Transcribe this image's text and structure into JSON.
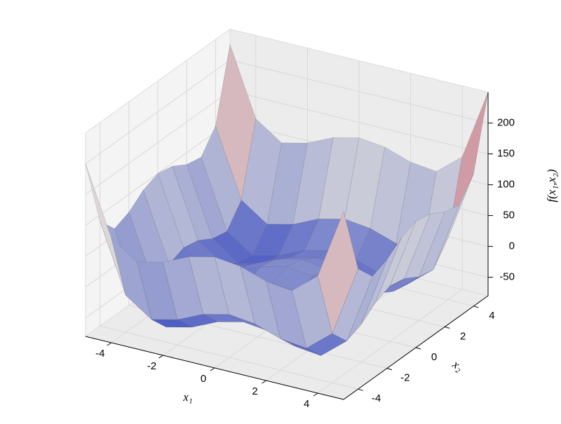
{
  "chart_data": {
    "type": "surface",
    "x_label": "x₁",
    "y_label": "x₂",
    "z_label": "f(x₁,x₂)",
    "x": [
      -5,
      -4,
      -3,
      -2,
      -1,
      0,
      1,
      2,
      3,
      4,
      5
    ],
    "y": [
      -5,
      -4,
      -3,
      -2,
      -1,
      0,
      1,
      2,
      3,
      4,
      5
    ],
    "z": [
      [
        200,
        90,
        61,
        71,
        90,
        100,
        95,
        81,
        76,
        110,
        225
      ],
      [
        90,
        -20,
        -49,
        -39,
        -20,
        -10,
        -15,
        -29,
        -34,
        0,
        115
      ],
      [
        61,
        -49,
        -78,
        -68,
        -49,
        -39,
        -44,
        -58,
        -63,
        -29,
        86
      ],
      [
        71,
        -39,
        -68,
        -58,
        -39,
        -29,
        -34,
        -48,
        -53,
        -19,
        96
      ],
      [
        90,
        -20,
        -49,
        -39,
        -20,
        -10,
        -15,
        -29,
        -34,
        0,
        115
      ],
      [
        100,
        -10,
        -39,
        -29,
        -10,
        0,
        -5,
        -19,
        -24,
        10,
        125
      ],
      [
        95,
        -15,
        -44,
        -34,
        -15,
        -5,
        -10,
        -24,
        -29,
        5,
        120
      ],
      [
        81,
        -29,
        -58,
        -48,
        -29,
        -19,
        -24,
        -38,
        -43,
        -9,
        106
      ],
      [
        76,
        -34,
        -63,
        -53,
        -34,
        -24,
        -29,
        -43,
        -48,
        -14,
        101
      ],
      [
        110,
        0,
        -29,
        -19,
        0,
        10,
        5,
        -9,
        -14,
        20,
        135
      ],
      [
        225,
        115,
        86,
        96,
        115,
        125,
        120,
        106,
        101,
        135,
        250
      ]
    ],
    "xlim": [
      -5,
      5
    ],
    "ylim": [
      -5,
      5
    ],
    "zlim": [
      -80,
      250
    ],
    "xticks": [
      -4,
      -2,
      0,
      2,
      4
    ],
    "yticks": [
      -4,
      -2,
      0,
      2,
      4
    ],
    "zticks": [
      -50,
      0,
      50,
      100,
      150,
      200
    ],
    "colormap": "coolwarm",
    "grid": true
  }
}
